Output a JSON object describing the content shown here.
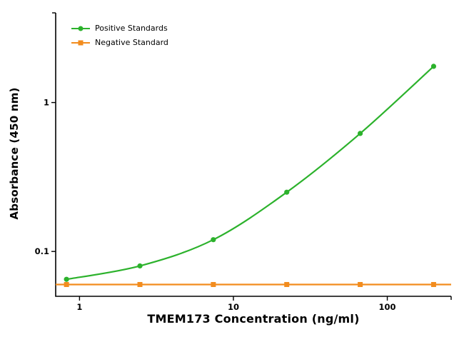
{
  "chart_data": {
    "type": "line",
    "title": "",
    "xlabel": "TMEM173 Concentration (ng/ml)",
    "ylabel": "Absorbance (450 nm)",
    "x_scale": "log",
    "y_scale": "log",
    "xlim": [
      0.7,
      260
    ],
    "ylim": [
      0.05,
      4
    ],
    "grid": false,
    "legend_position": "top-left",
    "axis_color": "#000000",
    "background_color": "#ffffff",
    "x_ticks": [
      {
        "value": 1,
        "label": "1"
      },
      {
        "value": 10,
        "label": "10"
      },
      {
        "value": 100,
        "label": "100"
      }
    ],
    "y_ticks": [
      {
        "value": 0.1,
        "label": "0.1"
      },
      {
        "value": 1,
        "label": "1"
      }
    ],
    "series": [
      {
        "name": "Positive Standards",
        "color": "#2cb22c",
        "marker": "circle",
        "line_span": "data",
        "x": [
          0.823,
          2.469,
          7.407,
          22.22,
          66.67,
          200
        ],
        "y": [
          0.065,
          0.08,
          0.12,
          0.25,
          0.62,
          1.75
        ]
      },
      {
        "name": "Negative Standard",
        "color": "#f28c1e",
        "marker": "square",
        "line_span": "full",
        "x": [
          0.823,
          2.469,
          7.407,
          22.22,
          66.67,
          200
        ],
        "y": [
          0.06,
          0.06,
          0.06,
          0.06,
          0.06,
          0.06
        ]
      }
    ]
  }
}
